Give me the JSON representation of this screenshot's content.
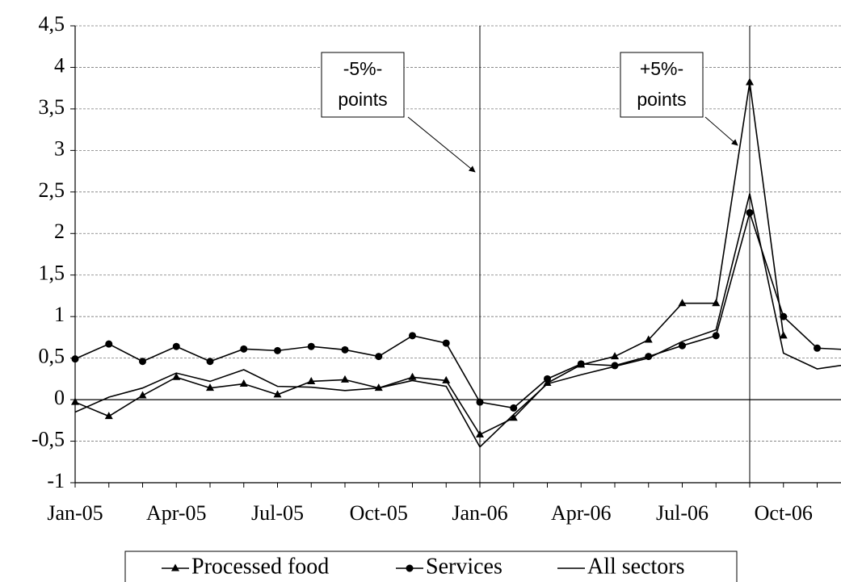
{
  "chart_data": {
    "type": "line",
    "categories": [
      "Jan-05",
      null,
      null,
      "Apr-05",
      null,
      null,
      "Jul-05",
      null,
      null,
      "Oct-05",
      null,
      null,
      "Jan-06",
      null,
      null,
      "Apr-06",
      null,
      null,
      "Jul-06",
      null,
      null,
      "Oct-06",
      null,
      null
    ],
    "series": [
      {
        "name": "Processed food",
        "color": "#000000",
        "marker": "triangle",
        "values": [
          -0.03,
          -0.2,
          0.05,
          0.27,
          0.14,
          0.19,
          0.06,
          0.22,
          0.24,
          0.14,
          0.27,
          0.23,
          -0.42,
          -0.22,
          0.2,
          0.42,
          0.52,
          0.72,
          1.16,
          1.16,
          3.82,
          0.77,
          null,
          null
        ]
      },
      {
        "name": "Services",
        "color": "#000000",
        "marker": "circle",
        "values": [
          0.49,
          0.67,
          0.46,
          0.64,
          0.46,
          0.61,
          0.59,
          0.64,
          0.6,
          0.52,
          0.77,
          0.68,
          -0.03,
          -0.1,
          0.25,
          0.43,
          0.41,
          0.52,
          0.65,
          0.77,
          2.25,
          1.0,
          0.62,
          0.6
        ]
      },
      {
        "name": "All sectors",
        "color": "#000000",
        "marker": "none",
        "values": [
          -0.15,
          0.03,
          0.14,
          0.32,
          0.22,
          0.36,
          0.16,
          0.15,
          0.11,
          0.14,
          0.23,
          0.16,
          -0.57,
          -0.18,
          0.19,
          0.3,
          0.4,
          0.5,
          0.7,
          0.84,
          2.48,
          0.56,
          0.37,
          0.43
        ]
      }
    ],
    "ylim": [
      -1,
      4.5
    ],
    "yticks": [
      -1,
      {
        "value": -0.5,
        "label": "-0,5"
      },
      0,
      {
        "value": 0.5,
        "label": "0,5"
      },
      1,
      {
        "value": 1.5,
        "label": "1,5"
      },
      2,
      {
        "value": 2.5,
        "label": "2,5"
      },
      3,
      {
        "value": 3.5,
        "label": "3,5"
      },
      4,
      {
        "value": 4.5,
        "label": "4,5"
      }
    ],
    "grid": true,
    "legend": "bottom",
    "annotations": [
      {
        "lines": [
          "-5%-",
          "points"
        ],
        "category_index": 12
      },
      {
        "lines": [
          "+5%-",
          "points"
        ],
        "category_index": 20
      }
    ]
  }
}
